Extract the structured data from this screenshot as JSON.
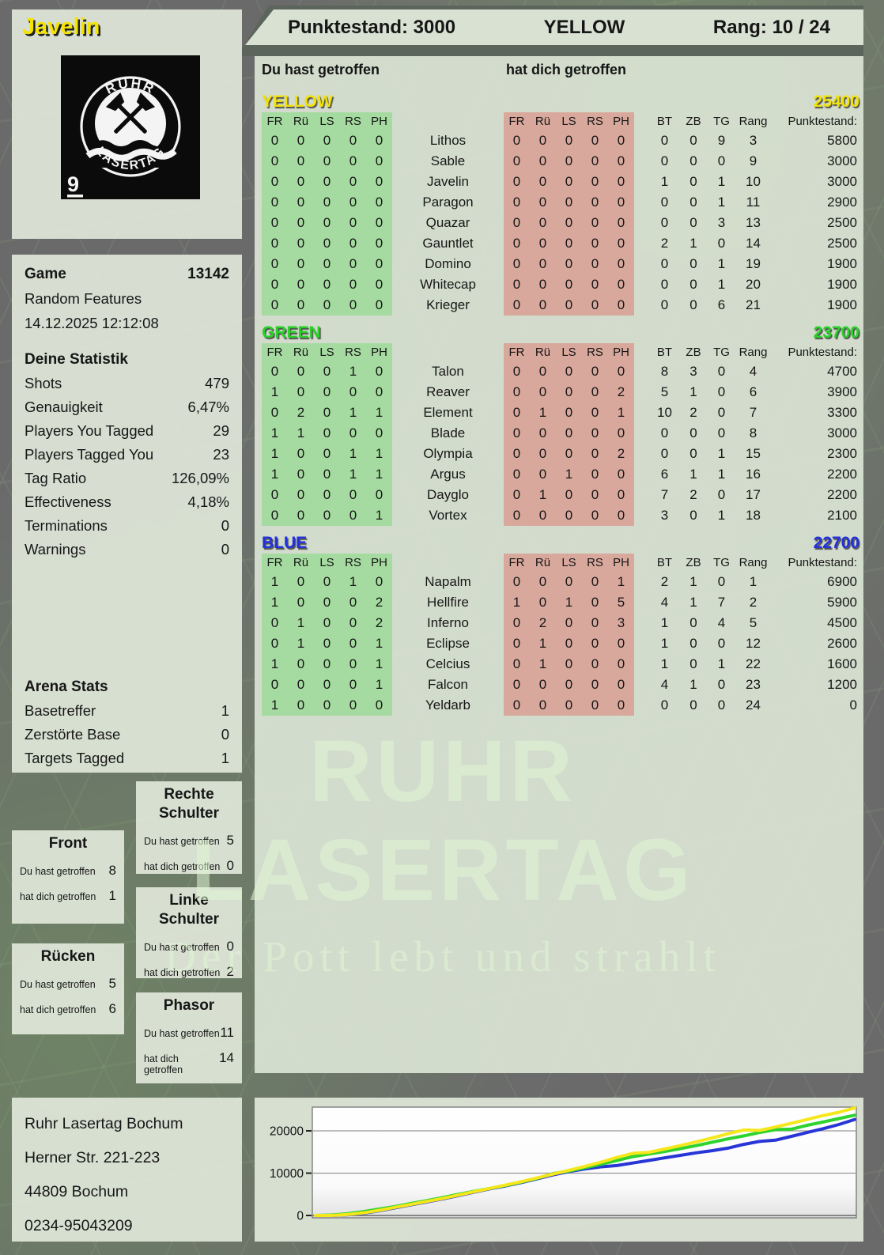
{
  "colors": {
    "accent_yellow": "#f2e205",
    "accent_green": "#28d228",
    "accent_blue": "#2230dd",
    "hit_block_green": "#a5dba0",
    "hit_block_red": "#d9a89c",
    "panel_bg": "#dde5d7",
    "page_bg": "#6a6a6a"
  },
  "title_bar": {
    "player_name": "Javelin",
    "score": "Punktestand: 3000",
    "team": "YELLOW",
    "rank": "Rang: 10 / 24"
  },
  "logo": {
    "arc_top": "RUHR",
    "arc_bottom": "LASERTAG",
    "corner_number": "9"
  },
  "game_info": {
    "game_label": "Game",
    "game_number": "13142",
    "mode": "Random Features",
    "datetime": "14.12.2025 12:12:08"
  },
  "your_stats": {
    "title": "Deine Statistik",
    "rows": [
      [
        "Shots",
        "479"
      ],
      [
        "Genauigkeit",
        "6,47%"
      ],
      [
        "Players You Tagged",
        "29"
      ],
      [
        "Players Tagged You",
        "23"
      ],
      [
        "Tag Ratio",
        "126,09%"
      ],
      [
        "Effectiveness",
        "4,18%"
      ],
      [
        "Terminations",
        "0"
      ],
      [
        "Warnings",
        "0"
      ]
    ]
  },
  "arena_stats": {
    "title": "Arena Stats",
    "rows": [
      [
        "Basetreffer",
        "1"
      ],
      [
        "Zerstörte Base",
        "0"
      ],
      [
        "Targets Tagged",
        "1"
      ]
    ]
  },
  "labels": {
    "du_hast": "Du hast getroffen",
    "hat_dich": "hat dich getroffen"
  },
  "columns": {
    "hit_cols": [
      "FR",
      "Rü",
      "LS",
      "RS",
      "PH"
    ],
    "stat_cols": [
      "BT",
      "ZB",
      "TG",
      "Rang",
      "Punktestand:"
    ]
  },
  "teams": [
    {
      "name": "YELLOW",
      "color": "#f2e205",
      "total": "25400",
      "rows": [
        {
          "name": "Lithos",
          "you": [
            0,
            0,
            0,
            0,
            0
          ],
          "them": [
            0,
            0,
            0,
            0,
            0
          ],
          "stats": [
            0,
            0,
            9,
            3,
            5800
          ]
        },
        {
          "name": "Sable",
          "you": [
            0,
            0,
            0,
            0,
            0
          ],
          "them": [
            0,
            0,
            0,
            0,
            0
          ],
          "stats": [
            0,
            0,
            0,
            9,
            3000
          ]
        },
        {
          "name": "Javelin",
          "you": [
            0,
            0,
            0,
            0,
            0
          ],
          "them": [
            0,
            0,
            0,
            0,
            0
          ],
          "stats": [
            1,
            0,
            1,
            10,
            3000
          ]
        },
        {
          "name": "Paragon",
          "you": [
            0,
            0,
            0,
            0,
            0
          ],
          "them": [
            0,
            0,
            0,
            0,
            0
          ],
          "stats": [
            0,
            0,
            1,
            11,
            2900
          ]
        },
        {
          "name": "Quazar",
          "you": [
            0,
            0,
            0,
            0,
            0
          ],
          "them": [
            0,
            0,
            0,
            0,
            0
          ],
          "stats": [
            0,
            0,
            3,
            13,
            2500
          ]
        },
        {
          "name": "Gauntlet",
          "you": [
            0,
            0,
            0,
            0,
            0
          ],
          "them": [
            0,
            0,
            0,
            0,
            0
          ],
          "stats": [
            2,
            1,
            0,
            14,
            2500
          ]
        },
        {
          "name": "Domino",
          "you": [
            0,
            0,
            0,
            0,
            0
          ],
          "them": [
            0,
            0,
            0,
            0,
            0
          ],
          "stats": [
            0,
            0,
            1,
            19,
            1900
          ]
        },
        {
          "name": "Whitecap",
          "you": [
            0,
            0,
            0,
            0,
            0
          ],
          "them": [
            0,
            0,
            0,
            0,
            0
          ],
          "stats": [
            0,
            0,
            1,
            20,
            1900
          ]
        },
        {
          "name": "Krieger",
          "you": [
            0,
            0,
            0,
            0,
            0
          ],
          "them": [
            0,
            0,
            0,
            0,
            0
          ],
          "stats": [
            0,
            0,
            6,
            21,
            1900
          ]
        }
      ]
    },
    {
      "name": "GREEN",
      "color": "#28d228",
      "total": "23700",
      "rows": [
        {
          "name": "Talon",
          "you": [
            0,
            0,
            0,
            1,
            0
          ],
          "them": [
            0,
            0,
            0,
            0,
            0
          ],
          "stats": [
            8,
            3,
            0,
            4,
            4700
          ]
        },
        {
          "name": "Reaver",
          "you": [
            1,
            0,
            0,
            0,
            0
          ],
          "them": [
            0,
            0,
            0,
            0,
            2
          ],
          "stats": [
            5,
            1,
            0,
            6,
            3900
          ]
        },
        {
          "name": "Element",
          "you": [
            0,
            2,
            0,
            1,
            1
          ],
          "them": [
            0,
            1,
            0,
            0,
            1
          ],
          "stats": [
            10,
            2,
            0,
            7,
            3300
          ]
        },
        {
          "name": "Blade",
          "you": [
            1,
            1,
            0,
            0,
            0
          ],
          "them": [
            0,
            0,
            0,
            0,
            0
          ],
          "stats": [
            0,
            0,
            0,
            8,
            3000
          ]
        },
        {
          "name": "Olympia",
          "you": [
            1,
            0,
            0,
            1,
            1
          ],
          "them": [
            0,
            0,
            0,
            0,
            2
          ],
          "stats": [
            0,
            0,
            1,
            15,
            2300
          ]
        },
        {
          "name": "Argus",
          "you": [
            1,
            0,
            0,
            1,
            1
          ],
          "them": [
            0,
            0,
            1,
            0,
            0
          ],
          "stats": [
            6,
            1,
            1,
            16,
            2200
          ]
        },
        {
          "name": "Dayglo",
          "you": [
            0,
            0,
            0,
            0,
            0
          ],
          "them": [
            0,
            1,
            0,
            0,
            0
          ],
          "stats": [
            7,
            2,
            0,
            17,
            2200
          ]
        },
        {
          "name": "Vortex",
          "you": [
            0,
            0,
            0,
            0,
            1
          ],
          "them": [
            0,
            0,
            0,
            0,
            0
          ],
          "stats": [
            3,
            0,
            1,
            18,
            2100
          ]
        }
      ]
    },
    {
      "name": "BLUE",
      "color": "#2230dd",
      "total": "22700",
      "rows": [
        {
          "name": "Napalm",
          "you": [
            1,
            0,
            0,
            1,
            0
          ],
          "them": [
            0,
            0,
            0,
            0,
            1
          ],
          "stats": [
            2,
            1,
            0,
            1,
            6900
          ]
        },
        {
          "name": "Hellfire",
          "you": [
            1,
            0,
            0,
            0,
            2
          ],
          "them": [
            1,
            0,
            1,
            0,
            5
          ],
          "stats": [
            4,
            1,
            7,
            2,
            5900
          ]
        },
        {
          "name": "Inferno",
          "you": [
            0,
            1,
            0,
            0,
            2
          ],
          "them": [
            0,
            2,
            0,
            0,
            3
          ],
          "stats": [
            1,
            0,
            4,
            5,
            4500
          ]
        },
        {
          "name": "Eclipse",
          "you": [
            0,
            1,
            0,
            0,
            1
          ],
          "them": [
            0,
            1,
            0,
            0,
            0
          ],
          "stats": [
            1,
            0,
            0,
            12,
            2600
          ]
        },
        {
          "name": "Celcius",
          "you": [
            1,
            0,
            0,
            0,
            1
          ],
          "them": [
            0,
            1,
            0,
            0,
            0
          ],
          "stats": [
            1,
            0,
            1,
            22,
            1600
          ]
        },
        {
          "name": "Falcon",
          "you": [
            0,
            0,
            0,
            0,
            1
          ],
          "them": [
            0,
            0,
            0,
            0,
            0
          ],
          "stats": [
            4,
            1,
            0,
            23,
            1200
          ]
        },
        {
          "name": "Yeldarb",
          "you": [
            1,
            0,
            0,
            0,
            0
          ],
          "them": [
            0,
            0,
            0,
            0,
            0
          ],
          "stats": [
            0,
            0,
            0,
            24,
            0
          ]
        }
      ]
    }
  ],
  "hit_zones": [
    {
      "title": "Front",
      "du_hast": "8",
      "hat_dich": "1"
    },
    {
      "title": "Rechte Schulter",
      "du_hast": "5",
      "hat_dich": "0"
    },
    {
      "title": "Linke Schulter",
      "du_hast": "0",
      "hat_dich": "2"
    },
    {
      "title": "Rücken",
      "du_hast": "5",
      "hat_dich": "6"
    },
    {
      "title": "Phasor",
      "du_hast": "11",
      "hat_dich": "14"
    }
  ],
  "address": {
    "lines": [
      "Ruhr Lasertag Bochum",
      "Herner Str. 221-223",
      "44809 Bochum",
      "0234-95043209"
    ]
  },
  "watermark": {
    "line1": "RUHR",
    "line2": "LASERTAG",
    "line3": "Der Pott lebt und strahlt"
  },
  "chart_data": {
    "type": "line",
    "title": "",
    "xlabel": "",
    "ylabel": "",
    "yticks": [
      0,
      10000,
      20000
    ],
    "ylim": [
      0,
      26500
    ],
    "grid": true,
    "legend_position": "none",
    "series": [
      {
        "name": "YELLOW",
        "color": "#f5e71c",
        "values": [
          0,
          0,
          200,
          600,
          1200,
          1900,
          2600,
          3300,
          4000,
          4800,
          5600,
          6400,
          7200,
          8000,
          8900,
          9800,
          10700,
          11600,
          12600,
          13700,
          14700,
          14900,
          15700,
          16500,
          17400,
          18300,
          19300,
          20200,
          20100,
          20900,
          21800,
          22700,
          23600,
          24400,
          25400
        ]
      },
      {
        "name": "GREEN",
        "color": "#2ed32e",
        "values": [
          0,
          100,
          400,
          900,
          1500,
          2100,
          2800,
          3500,
          4200,
          5000,
          5700,
          6400,
          7100,
          7900,
          8800,
          9900,
          10500,
          11300,
          12100,
          13000,
          13900,
          14500,
          15100,
          15800,
          16500,
          17300,
          18100,
          18800,
          19600,
          20300,
          20400,
          21300,
          22100,
          22900,
          23700
        ]
      },
      {
        "name": "BLUE",
        "color": "#2836d6",
        "values": [
          0,
          0,
          150,
          500,
          1100,
          1800,
          2500,
          3200,
          3900,
          4700,
          5500,
          6300,
          7000,
          7800,
          8700,
          9600,
          10400,
          11000,
          11500,
          11800,
          12400,
          13000,
          13600,
          14200,
          14800,
          15300,
          15900,
          16800,
          17500,
          17800,
          18700,
          19600,
          20500,
          21500,
          22700
        ]
      }
    ]
  }
}
